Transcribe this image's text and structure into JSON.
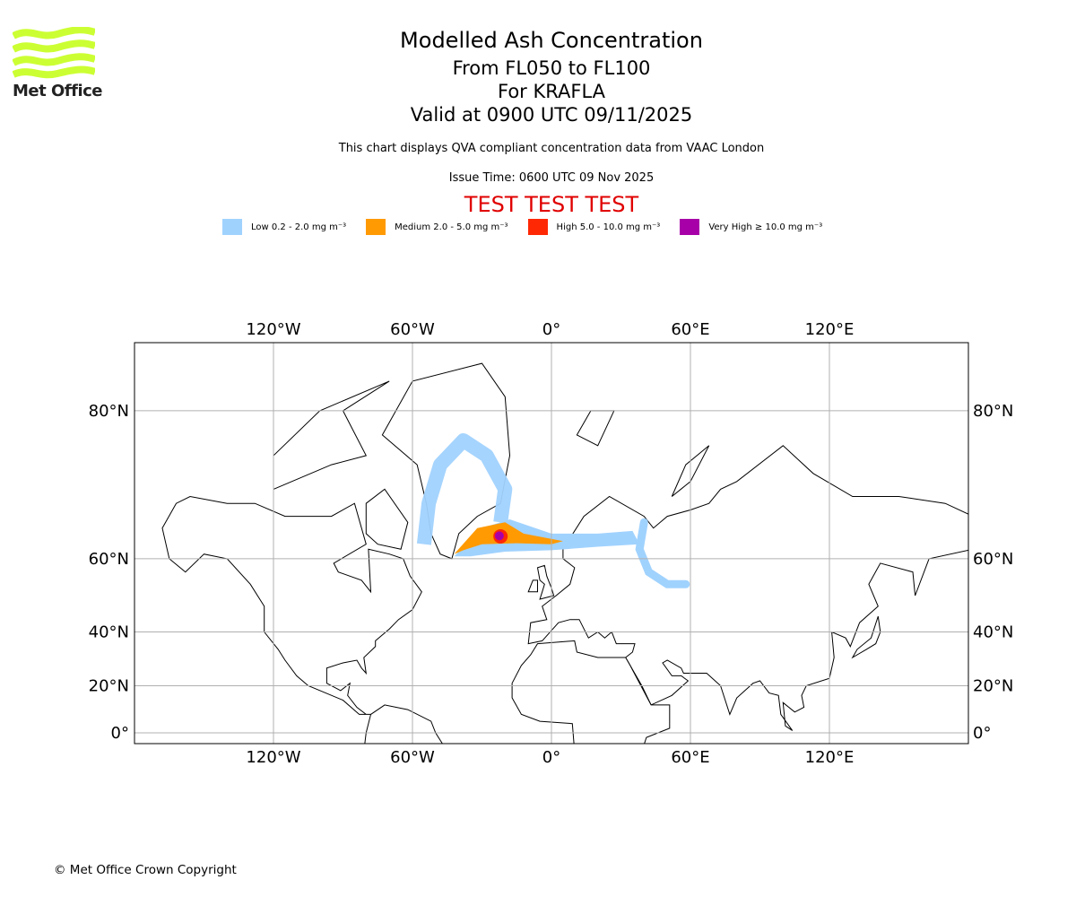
{
  "logo": {
    "text": "Met Office",
    "color": "#ccff33"
  },
  "header": {
    "title": "Modelled Ash Concentration",
    "levels": "From FL050 to FL100",
    "volcano": "For KRAFLA",
    "valid": "Valid at 0900 UTC 09/11/2025",
    "subtitle": "This chart displays QVA compliant concentration data from VAAC London",
    "issue_time": "Issue Time: 0600 UTC 09 Nov 2025",
    "test_banner": "TEST TEST TEST"
  },
  "legend": [
    {
      "label": "Low 0.2 - 2.0 mg m⁻³",
      "color": "#a0d2fe"
    },
    {
      "label": "Medium 2.0 - 5.0 mg m⁻³",
      "color": "#ff9a03"
    },
    {
      "label": "High 5.0 - 10.0 mg m⁻³",
      "color": "#ff2805"
    },
    {
      "label": "Very High ≥ 10.0 mg m⁻³",
      "color": "#a800a9"
    }
  ],
  "map": {
    "lon_labels": [
      {
        "lon": -120,
        "label": "120°W"
      },
      {
        "lon": -60,
        "label": "60°W"
      },
      {
        "lon": 0,
        "label": "0°"
      },
      {
        "lon": 60,
        "label": "60°E"
      },
      {
        "lon": 120,
        "label": "120°E"
      }
    ],
    "lat_labels": [
      {
        "lat": 80,
        "label": "80°N"
      },
      {
        "lat": 60,
        "label": "60°N"
      },
      {
        "lat": 40,
        "label": "40°N"
      },
      {
        "lat": 20,
        "label": "20°N"
      },
      {
        "lat": 0,
        "label": "0°"
      }
    ]
  },
  "footer": {
    "copyright": "© Met Office Crown Copyright"
  }
}
